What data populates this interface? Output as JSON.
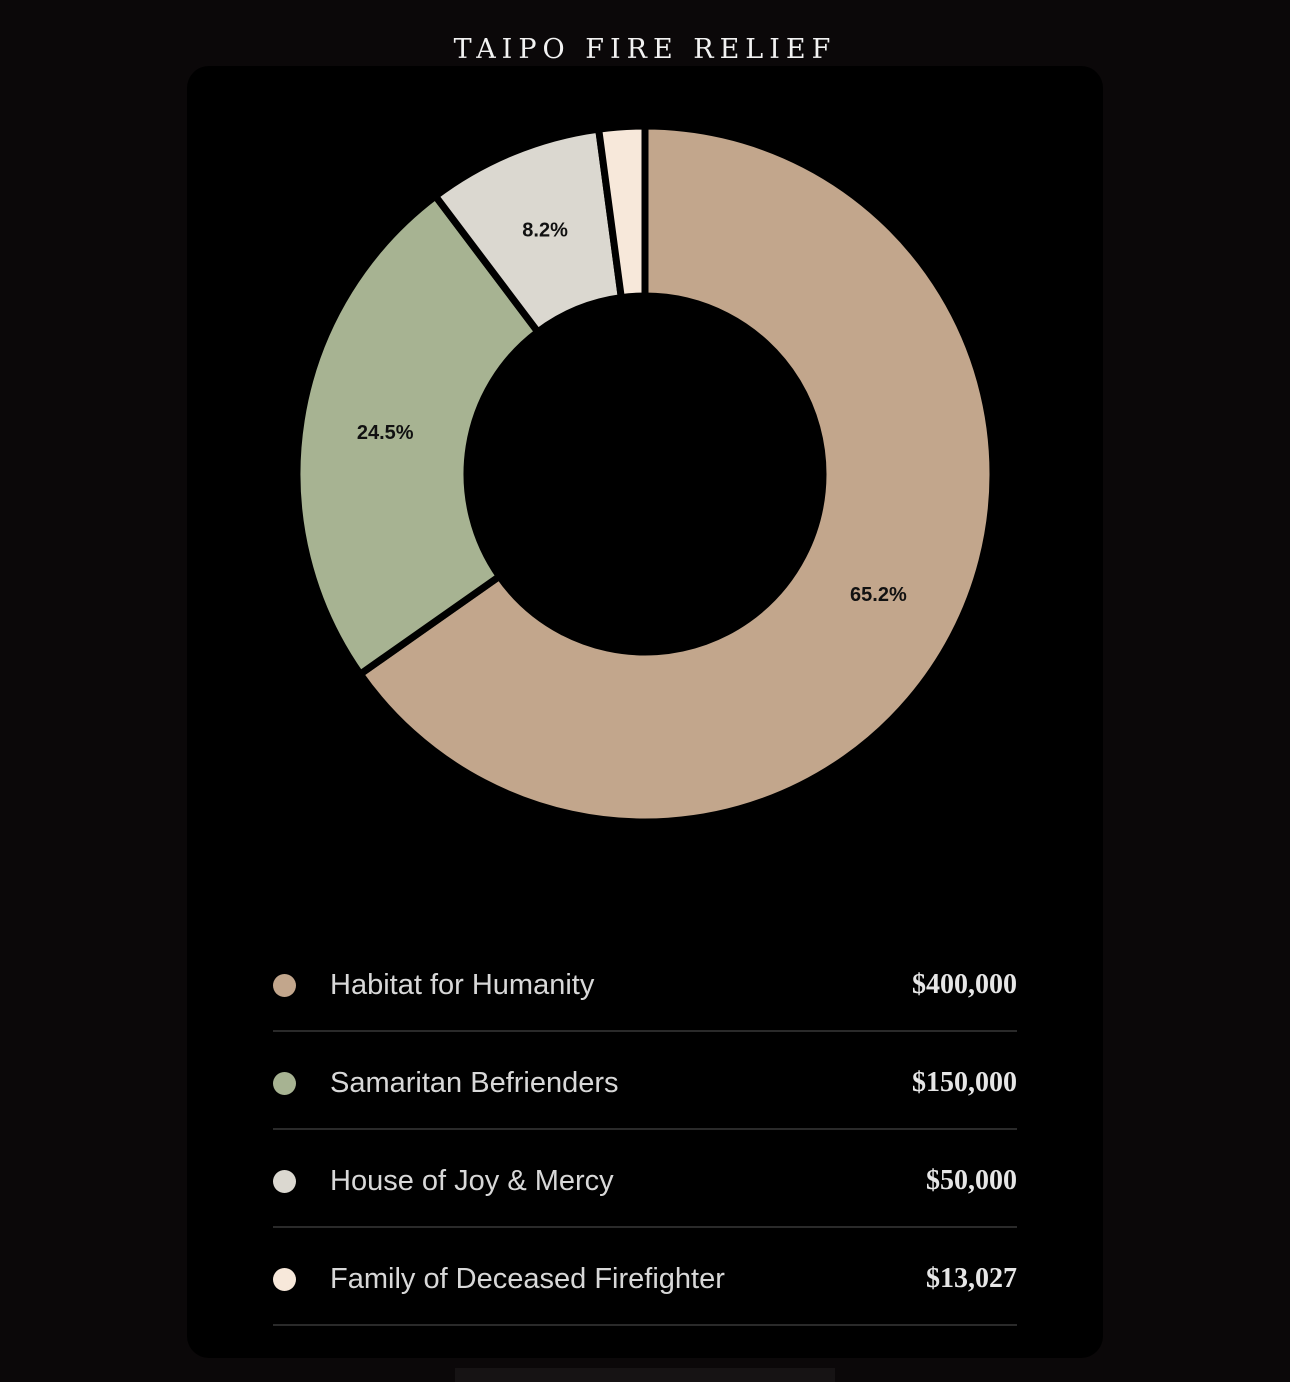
{
  "title": "TAIPO FIRE RELIEF",
  "chart_data": {
    "type": "pie",
    "donut": true,
    "slices": [
      {
        "name": "Habitat for Humanity",
        "value": 400000,
        "amount": "$400,000",
        "percent": 65.2,
        "percent_label": "65.2%",
        "color": "#c2a68c"
      },
      {
        "name": "Samaritan Befrienders",
        "value": 150000,
        "amount": "$150,000",
        "percent": 24.5,
        "percent_label": "24.5%",
        "color": "#a7b392"
      },
      {
        "name": "House of Joy & Mercy",
        "value": 50000,
        "amount": "$50,000",
        "percent": 8.2,
        "percent_label": "8.2%",
        "color": "#dbd8d0"
      },
      {
        "name": "Family of Deceased Firefighter",
        "value": 13027,
        "amount": "$13,027",
        "percent": 2.1,
        "percent_label": "",
        "color": "#f7e8da"
      }
    ],
    "legend_position": "bottom",
    "start_angle": "top",
    "direction": "clockwise"
  }
}
